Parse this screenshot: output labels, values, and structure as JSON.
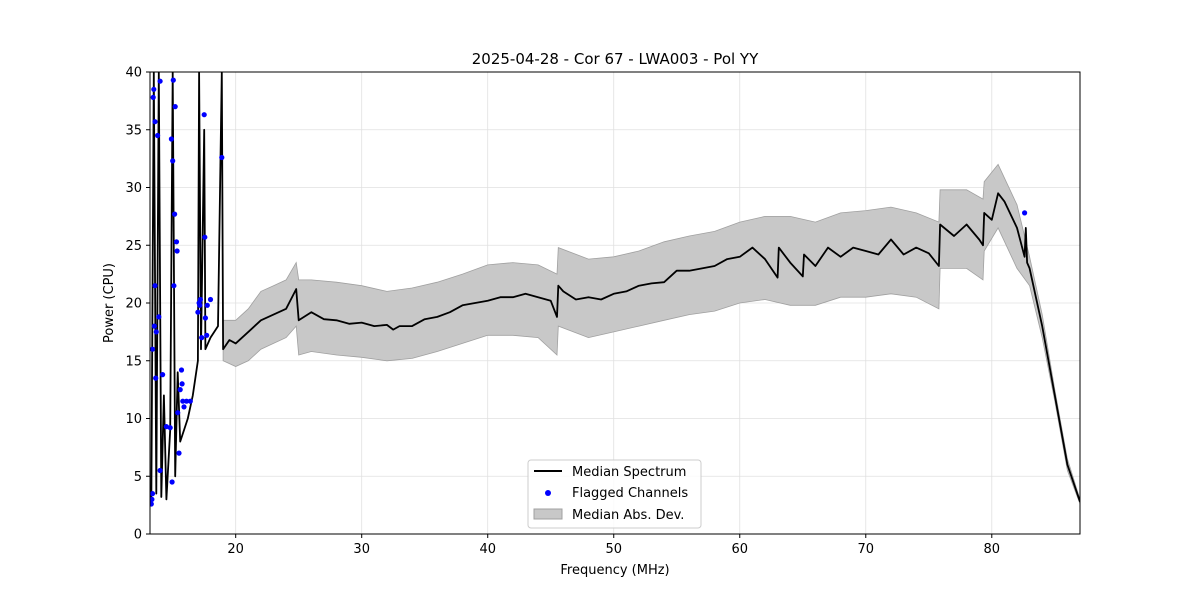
{
  "chart_data": {
    "type": "line",
    "title": "2025-04-28 - Cor 67 - LWA003 - Pol YY",
    "xlabel": "Frequency (MHz)",
    "ylabel": "Power (CPU)",
    "xlim": [
      13.2,
      87.0
    ],
    "ylim": [
      0,
      40
    ],
    "x_ticks": [
      20,
      30,
      40,
      50,
      60,
      70,
      80
    ],
    "y_ticks": [
      0,
      5,
      10,
      15,
      20,
      25,
      30,
      35,
      40
    ],
    "grid": true,
    "legend_position": "bottom-center",
    "legend": [
      {
        "label": "Median Spectrum",
        "kind": "line"
      },
      {
        "label": "Flagged Channels",
        "kind": "marker"
      },
      {
        "label": "Median Abs. Dev.",
        "kind": "band"
      }
    ],
    "colors": {
      "median": "#000000",
      "flagged": "#0000ff",
      "band_fill": "#c8c8c8",
      "band_edge": "#a0a0a0",
      "grid": "#e0e0e0"
    },
    "median_spectrum": [
      [
        13.3,
        2.5
      ],
      [
        13.5,
        40
      ],
      [
        13.7,
        3.5
      ],
      [
        13.9,
        40
      ],
      [
        14.1,
        3.2
      ],
      [
        14.3,
        12
      ],
      [
        14.5,
        3.0
      ],
      [
        14.8,
        9
      ],
      [
        15.0,
        40
      ],
      [
        15.2,
        5
      ],
      [
        15.4,
        14
      ],
      [
        15.6,
        8
      ],
      [
        15.9,
        9
      ],
      [
        16.2,
        10
      ],
      [
        16.6,
        12
      ],
      [
        17.0,
        15
      ],
      [
        17.1,
        40
      ],
      [
        17.25,
        16
      ],
      [
        17.5,
        35
      ],
      [
        17.6,
        16
      ],
      [
        18.0,
        17
      ],
      [
        18.6,
        18
      ],
      [
        18.9,
        40
      ],
      [
        19.0,
        16
      ],
      [
        19.5,
        16.8
      ],
      [
        20.0,
        16.5
      ],
      [
        21,
        17.5
      ],
      [
        22,
        18.5
      ],
      [
        23,
        19
      ],
      [
        24,
        19.5
      ],
      [
        24.8,
        21.2
      ],
      [
        25,
        18.5
      ],
      [
        26,
        19.2
      ],
      [
        27,
        18.6
      ],
      [
        28,
        18.5
      ],
      [
        29,
        18.2
      ],
      [
        30,
        18.3
      ],
      [
        31,
        18.0
      ],
      [
        32,
        18.1
      ],
      [
        32.5,
        17.7
      ],
      [
        33,
        18.0
      ],
      [
        34,
        18.0
      ],
      [
        35,
        18.6
      ],
      [
        36,
        18.8
      ],
      [
        37,
        19.2
      ],
      [
        38,
        19.8
      ],
      [
        39,
        20.0
      ],
      [
        40,
        20.2
      ],
      [
        41,
        20.5
      ],
      [
        42,
        20.5
      ],
      [
        43,
        20.8
      ],
      [
        44,
        20.5
      ],
      [
        45,
        20.2
      ],
      [
        45.5,
        18.8
      ],
      [
        45.6,
        21.5
      ],
      [
        46,
        21.0
      ],
      [
        47,
        20.3
      ],
      [
        48,
        20.5
      ],
      [
        49,
        20.3
      ],
      [
        50,
        20.8
      ],
      [
        51,
        21.0
      ],
      [
        52,
        21.5
      ],
      [
        53,
        21.7
      ],
      [
        54,
        21.8
      ],
      [
        55,
        22.8
      ],
      [
        56,
        22.8
      ],
      [
        57,
        23.0
      ],
      [
        58,
        23.2
      ],
      [
        59,
        23.8
      ],
      [
        60,
        24.0
      ],
      [
        61,
        24.8
      ],
      [
        62,
        23.8
      ],
      [
        63,
        22.2
      ],
      [
        63.1,
        24.8
      ],
      [
        64,
        23.5
      ],
      [
        65,
        22.3
      ],
      [
        65.1,
        24.2
      ],
      [
        66,
        23.2
      ],
      [
        67,
        24.8
      ],
      [
        68,
        24.0
      ],
      [
        69,
        24.8
      ],
      [
        70,
        24.5
      ],
      [
        71,
        24.2
      ],
      [
        72,
        25.5
      ],
      [
        73,
        24.2
      ],
      [
        74,
        24.8
      ],
      [
        75,
        24.3
      ],
      [
        75.8,
        23.2
      ],
      [
        75.9,
        26.8
      ],
      [
        77,
        25.8
      ],
      [
        78,
        26.8
      ],
      [
        79,
        25.5
      ],
      [
        79.3,
        25.0
      ],
      [
        79.4,
        27.8
      ],
      [
        80,
        27.2
      ],
      [
        80.5,
        29.5
      ],
      [
        81,
        28.8
      ],
      [
        82,
        26.5
      ],
      [
        82.6,
        24.0
      ],
      [
        82.7,
        26.5
      ],
      [
        82.8,
        23.5
      ],
      [
        83,
        23.0
      ],
      [
        84,
        18.0
      ],
      [
        85,
        12.0
      ],
      [
        86,
        6.0
      ],
      [
        87,
        2.8
      ]
    ],
    "band_upper": [
      [
        19,
        18.5
      ],
      [
        20,
        18.5
      ],
      [
        21,
        19.5
      ],
      [
        22,
        21.0
      ],
      [
        23,
        21.5
      ],
      [
        24,
        22.0
      ],
      [
        24.8,
        23.5
      ],
      [
        25,
        22.0
      ],
      [
        26,
        22.0
      ],
      [
        28,
        21.8
      ],
      [
        30,
        21.5
      ],
      [
        32,
        21.0
      ],
      [
        34,
        21.3
      ],
      [
        36,
        21.8
      ],
      [
        38,
        22.5
      ],
      [
        40,
        23.3
      ],
      [
        42,
        23.5
      ],
      [
        44,
        23.3
      ],
      [
        45.5,
        22.5
      ],
      [
        45.6,
        24.8
      ],
      [
        48,
        23.8
      ],
      [
        50,
        24.0
      ],
      [
        52,
        24.5
      ],
      [
        54,
        25.3
      ],
      [
        56,
        25.8
      ],
      [
        58,
        26.2
      ],
      [
        60,
        27.0
      ],
      [
        62,
        27.5
      ],
      [
        64,
        27.5
      ],
      [
        66,
        27.0
      ],
      [
        68,
        27.8
      ],
      [
        70,
        28.0
      ],
      [
        72,
        28.3
      ],
      [
        74,
        27.8
      ],
      [
        75.8,
        27.0
      ],
      [
        75.9,
        29.8
      ],
      [
        78,
        29.8
      ],
      [
        79.3,
        29.0
      ],
      [
        79.4,
        30.5
      ],
      [
        80.5,
        32.0
      ],
      [
        82,
        28.5
      ],
      [
        83,
        24.0
      ],
      [
        84,
        19.0
      ],
      [
        85,
        12.5
      ],
      [
        86,
        6.5
      ],
      [
        87,
        3.0
      ]
    ],
    "band_lower": [
      [
        19,
        15.0
      ],
      [
        20,
        14.5
      ],
      [
        21,
        15.0
      ],
      [
        22,
        16.0
      ],
      [
        23,
        16.5
      ],
      [
        24,
        17.0
      ],
      [
        24.8,
        18.0
      ],
      [
        25,
        15.5
      ],
      [
        26,
        15.8
      ],
      [
        28,
        15.5
      ],
      [
        30,
        15.3
      ],
      [
        32,
        15.0
      ],
      [
        34,
        15.2
      ],
      [
        36,
        15.8
      ],
      [
        38,
        16.5
      ],
      [
        40,
        17.2
      ],
      [
        42,
        17.2
      ],
      [
        44,
        17.0
      ],
      [
        45.5,
        15.5
      ],
      [
        45.6,
        18.0
      ],
      [
        48,
        17.0
      ],
      [
        50,
        17.5
      ],
      [
        52,
        18.0
      ],
      [
        54,
        18.5
      ],
      [
        56,
        19.0
      ],
      [
        58,
        19.3
      ],
      [
        60,
        20.0
      ],
      [
        62,
        20.3
      ],
      [
        64,
        19.8
      ],
      [
        66,
        19.8
      ],
      [
        68,
        20.5
      ],
      [
        70,
        20.5
      ],
      [
        72,
        20.8
      ],
      [
        74,
        20.5
      ],
      [
        75.8,
        19.5
      ],
      [
        75.9,
        23.0
      ],
      [
        78,
        23.0
      ],
      [
        79.3,
        22.0
      ],
      [
        79.4,
        24.5
      ],
      [
        80.5,
        26.5
      ],
      [
        82,
        23.0
      ],
      [
        83,
        21.5
      ],
      [
        84,
        17.0
      ],
      [
        85,
        11.5
      ],
      [
        86,
        5.5
      ],
      [
        87,
        2.6
      ]
    ],
    "flagged_channels": [
      [
        13.3,
        2.6
      ],
      [
        13.35,
        3.0
      ],
      [
        13.4,
        3.5
      ],
      [
        13.4,
        16.0
      ],
      [
        13.45,
        37.8
      ],
      [
        13.5,
        38.5
      ],
      [
        13.55,
        18.0
      ],
      [
        13.6,
        21.5
      ],
      [
        13.6,
        35.7
      ],
      [
        13.65,
        13.5
      ],
      [
        13.7,
        17.5
      ],
      [
        13.8,
        34.5
      ],
      [
        13.9,
        18.8
      ],
      [
        14.0,
        39.2
      ],
      [
        14.0,
        5.5
      ],
      [
        14.2,
        13.8
      ],
      [
        14.5,
        9.3
      ],
      [
        14.8,
        9.2
      ],
      [
        14.9,
        34.2
      ],
      [
        14.95,
        4.5
      ],
      [
        15.0,
        32.3
      ],
      [
        15.05,
        39.3
      ],
      [
        15.1,
        21.5
      ],
      [
        15.15,
        27.7
      ],
      [
        15.2,
        37.0
      ],
      [
        15.3,
        25.3
      ],
      [
        15.35,
        24.5
      ],
      [
        15.4,
        10.5
      ],
      [
        15.5,
        7.0
      ],
      [
        15.6,
        12.5
      ],
      [
        15.7,
        14.2
      ],
      [
        15.75,
        13.0
      ],
      [
        15.8,
        11.5
      ],
      [
        15.9,
        11.0
      ],
      [
        16.1,
        11.5
      ],
      [
        16.4,
        11.5
      ],
      [
        17.0,
        19.2
      ],
      [
        17.1,
        20.0
      ],
      [
        17.15,
        19.8
      ],
      [
        17.2,
        20.3
      ],
      [
        17.3,
        17.0
      ],
      [
        17.5,
        36.3
      ],
      [
        17.55,
        25.7
      ],
      [
        17.6,
        18.7
      ],
      [
        17.7,
        17.2
      ],
      [
        17.75,
        19.8
      ],
      [
        18.0,
        20.3
      ],
      [
        18.9,
        32.6
      ],
      [
        82.6,
        27.8
      ]
    ]
  }
}
